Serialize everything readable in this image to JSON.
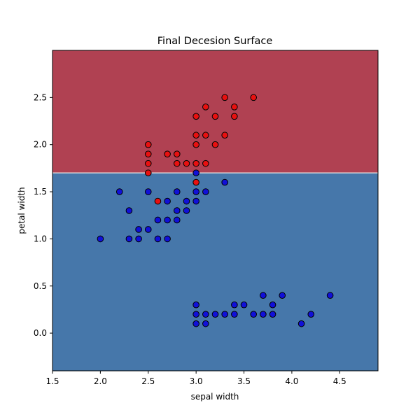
{
  "chart_data": {
    "type": "scatter",
    "title": "Final Decesion Surface",
    "xlabel": "sepal width",
    "ylabel": "petal width",
    "xlim": [
      1.5,
      4.9
    ],
    "ylim": [
      -0.4,
      3.0
    ],
    "xticks": [
      1.5,
      2.0,
      2.5,
      3.0,
      3.5,
      4.0,
      4.5
    ],
    "yticks": [
      0.0,
      0.5,
      1.0,
      1.5,
      2.0,
      2.5
    ],
    "tick_labels_x": [
      "1.5",
      "2.0",
      "2.5",
      "3.0",
      "3.5",
      "4.0",
      "4.5"
    ],
    "tick_labels_y": [
      "0.0",
      "0.5",
      "1.0",
      "1.5",
      "2.0",
      "2.5"
    ],
    "grid": false,
    "decision_boundary": {
      "axis": "y",
      "threshold": 1.7
    },
    "regions": [
      {
        "label": "above",
        "color": "#b04152"
      },
      {
        "label": "below",
        "color": "#4677aa"
      }
    ],
    "series": [
      {
        "color": "#e81010",
        "points": [
          [
            3.3,
            2.5
          ],
          [
            3.6,
            2.5
          ],
          [
            3.4,
            2.4
          ],
          [
            3.1,
            2.4
          ],
          [
            3.0,
            2.3
          ],
          [
            3.2,
            2.3
          ],
          [
            3.4,
            2.3
          ],
          [
            3.0,
            2.1
          ],
          [
            3.1,
            2.1
          ],
          [
            3.3,
            2.1
          ],
          [
            2.5,
            2.0
          ],
          [
            3.0,
            2.0
          ],
          [
            3.2,
            2.0
          ],
          [
            2.5,
            1.9
          ],
          [
            2.7,
            1.9
          ],
          [
            2.8,
            1.9
          ],
          [
            2.5,
            1.8
          ],
          [
            2.8,
            1.8
          ],
          [
            2.9,
            1.8
          ],
          [
            3.0,
            1.8
          ],
          [
            3.1,
            1.8
          ],
          [
            2.5,
            1.7
          ],
          [
            3.0,
            1.6
          ],
          [
            2.6,
            1.4
          ]
        ]
      },
      {
        "color": "#1010d8",
        "points": [
          [
            3.0,
            1.7
          ],
          [
            2.2,
            1.5
          ],
          [
            2.5,
            1.5
          ],
          [
            2.8,
            1.5
          ],
          [
            3.0,
            1.5
          ],
          [
            3.1,
            1.5
          ],
          [
            3.3,
            1.6
          ],
          [
            2.7,
            1.4
          ],
          [
            2.9,
            1.4
          ],
          [
            3.0,
            1.4
          ],
          [
            2.3,
            1.3
          ],
          [
            2.8,
            1.3
          ],
          [
            2.9,
            1.3
          ],
          [
            2.6,
            1.2
          ],
          [
            2.7,
            1.2
          ],
          [
            2.8,
            1.2
          ],
          [
            2.4,
            1.1
          ],
          [
            2.5,
            1.1
          ],
          [
            2.0,
            1.0
          ],
          [
            2.3,
            1.0
          ],
          [
            2.4,
            1.0
          ],
          [
            2.6,
            1.0
          ],
          [
            2.7,
            1.0
          ],
          [
            3.7,
            0.4
          ],
          [
            3.9,
            0.4
          ],
          [
            4.4,
            0.4
          ],
          [
            3.0,
            0.3
          ],
          [
            3.4,
            0.3
          ],
          [
            3.5,
            0.3
          ],
          [
            3.8,
            0.3
          ],
          [
            3.0,
            0.2
          ],
          [
            3.1,
            0.2
          ],
          [
            3.2,
            0.2
          ],
          [
            3.3,
            0.2
          ],
          [
            3.4,
            0.2
          ],
          [
            3.6,
            0.2
          ],
          [
            3.7,
            0.2
          ],
          [
            3.8,
            0.2
          ],
          [
            4.2,
            0.2
          ],
          [
            3.0,
            0.1
          ],
          [
            3.1,
            0.1
          ],
          [
            4.1,
            0.1
          ]
        ]
      }
    ]
  }
}
